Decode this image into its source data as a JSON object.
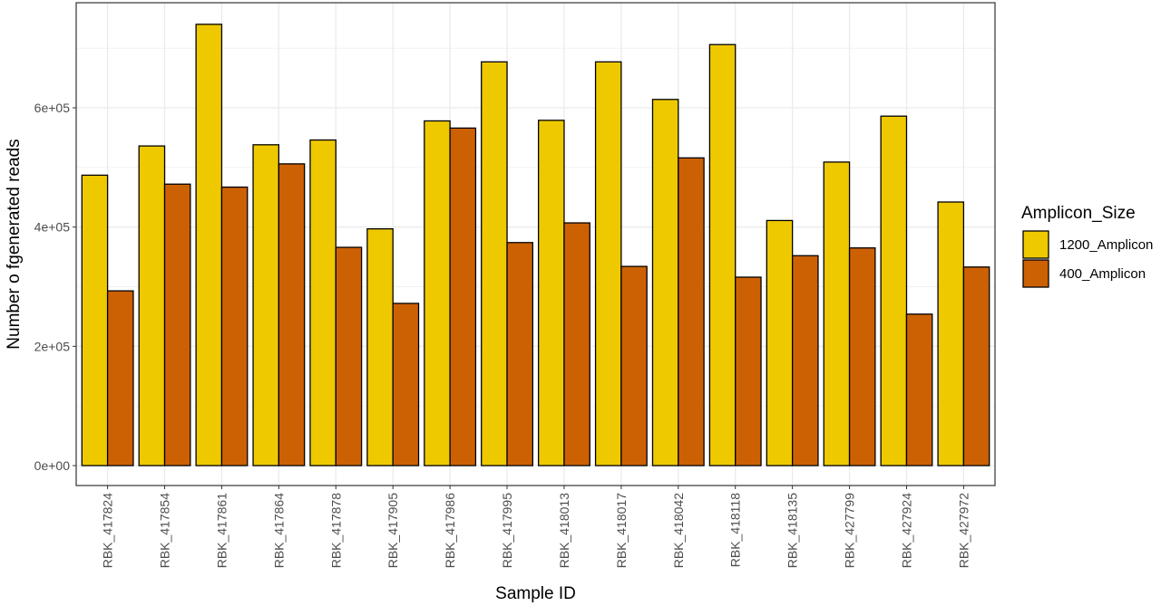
{
  "chart_data": {
    "type": "bar",
    "xlabel": "Sample ID",
    "ylabel": "Number o fgenerated reads",
    "ylim": [
      0,
      760000
    ],
    "yticks": [
      0,
      200000,
      400000,
      600000
    ],
    "ytick_labels": [
      "0e+00",
      "2e+05",
      "4e+05",
      "6e+05"
    ],
    "grid": true,
    "legend_title": "Amplicon_Size",
    "legend_position": "right",
    "categories": [
      "RBK_417824",
      "RBK_417854",
      "RBK_417861",
      "RBK_417864",
      "RBK_417878",
      "RBK_417905",
      "RBK_417986",
      "RBK_417995",
      "RBK_418013",
      "RBK_418017",
      "RBK_418042",
      "RBK_418118",
      "RBK_418135",
      "RBK_427799",
      "RBK_427924",
      "RBK_427972"
    ],
    "series": [
      {
        "name": "1200_Amplicon",
        "color": "#efc900",
        "values": [
          487000,
          536000,
          740000,
          538000,
          546000,
          397000,
          578000,
          677000,
          579000,
          677000,
          614000,
          706000,
          411000,
          509000,
          586000,
          442000
        ]
      },
      {
        "name": "400_Amplicon",
        "color": "#cc6104",
        "values": [
          293000,
          472000,
          467000,
          506000,
          366000,
          272000,
          566000,
          374000,
          407000,
          334000,
          516000,
          316000,
          352000,
          365000,
          254000,
          333000
        ]
      }
    ]
  }
}
